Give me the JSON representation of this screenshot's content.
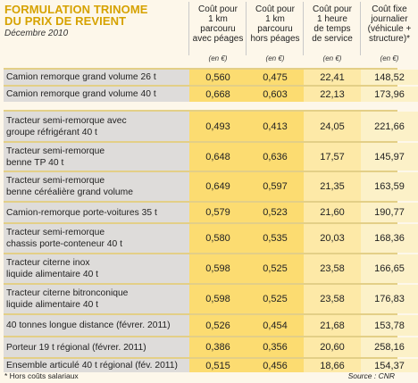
{
  "title_line1": "FORMULATION TRINOME",
  "title_line2": "DU PRIX DE REVIENT",
  "subtitle": "Décembre 2010",
  "columns": [
    {
      "lines": [
        "Coût pour",
        "1 km",
        "parcouru",
        "avec péages"
      ],
      "unit": "(en €)"
    },
    {
      "lines": [
        "Coût pour",
        "1 km",
        "parcouru",
        "hors péages"
      ],
      "unit": "(en €)"
    },
    {
      "lines": [
        "Coût pour",
        "1 heure",
        "de temps",
        "de service"
      ],
      "unit": "(en €)"
    },
    {
      "lines": [
        "Coût fixe",
        "journalier",
        "(véhicule +",
        "structure)*"
      ],
      "unit": "(en €)"
    }
  ],
  "rows": [
    {
      "label": [
        "Camion remorque grand volume 26 t"
      ],
      "values": [
        "0,560",
        "0,475",
        "22,41",
        "148,52"
      ]
    },
    {
      "label": [
        "Camion remorque grand volume 40 t"
      ],
      "values": [
        "0,668",
        "0,603",
        "22,13",
        "173,96"
      ]
    },
    {
      "label": [
        "Tracteur semi-remorque avec",
        "groupe réfrigérant 40 t"
      ],
      "values": [
        "0,493",
        "0,413",
        "24,05",
        "221,66"
      ]
    },
    {
      "label": [
        "Tracteur semi-remorque",
        "benne TP 40 t"
      ],
      "values": [
        "0,648",
        "0,636",
        "17,57",
        "145,97"
      ]
    },
    {
      "label": [
        "Tracteur semi-remorque",
        "benne céréalière grand volume"
      ],
      "values": [
        "0,649",
        "0,597",
        "21,35",
        "163,59"
      ]
    },
    {
      "label": [
        "Camion-remorque porte-voitures 35 t"
      ],
      "values": [
        "0,579",
        "0,523",
        "21,60",
        "190,77"
      ]
    },
    {
      "label": [
        "Tracteur semi-remorque",
        "chassis porte-conteneur 40 t"
      ],
      "values": [
        "0,580",
        "0,535",
        "20,03",
        "168,36"
      ]
    },
    {
      "label": [
        "Tracteur citerne inox",
        "liquide alimentaire 40 t"
      ],
      "values": [
        "0,598",
        "0,525",
        "23,58",
        "166,65"
      ]
    },
    {
      "label": [
        "Tracteur citerne bitronconique",
        "liquide alimentaire 40 t"
      ],
      "values": [
        "0,598",
        "0,525",
        "23,58",
        "176,83"
      ]
    },
    {
      "label": [
        "40 tonnes longue distance (févrer. 2011)"
      ],
      "values": [
        "0,526",
        "0,454",
        "21,68",
        "153,78"
      ]
    },
    {
      "label": [
        "Porteur 19 t régional (févrer. 2011)"
      ],
      "values": [
        "0,386",
        "0,356",
        "20,60",
        "258,16"
      ]
    },
    {
      "label": [
        "Ensemble articulé 40 t régional (fév. 2011)"
      ],
      "values": [
        "0,515",
        "0,456",
        "18,66",
        "154,37"
      ]
    }
  ],
  "footnote": "* Hors coûts salariaux",
  "source": "Source : CNR",
  "colors": {
    "title": "#d6a200",
    "label_bg": "#dedcda",
    "col_bg_strong": "#fcdc71",
    "col_bg_mid": "#fde9a7",
    "col_bg_light": "#fcf1c8"
  }
}
